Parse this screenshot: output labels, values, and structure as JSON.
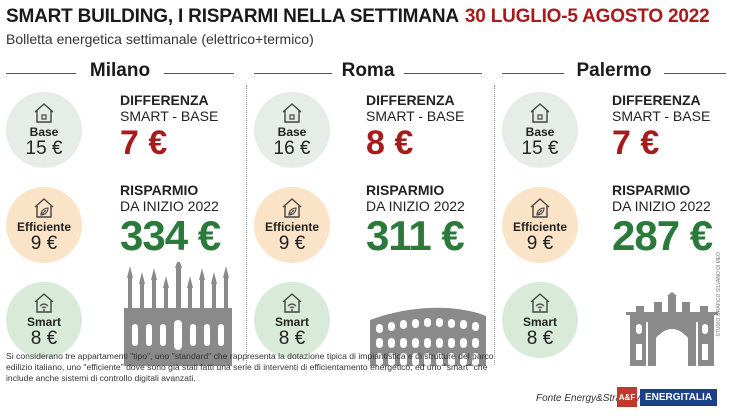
{
  "header": {
    "title": "SMART BUILDING, I RISPARMI NELLA SETTIMANA",
    "date_range": "30 LUGLIO-5 AGOSTO 2022",
    "subtitle": "Bolletta energetica settimanale (elettrico+termico)"
  },
  "labels": {
    "base": "Base",
    "efficient": "Efficiente",
    "smart": "Smart",
    "diff_line1": "DIFFERENZA",
    "diff_line2": "SMART - BASE",
    "save_line1": "RISPARMIO",
    "save_line2": "DA INIZIO 2022"
  },
  "cities": [
    {
      "name": "Milano",
      "base": "15 €",
      "efficient": "9 €",
      "smart": "8 €",
      "difference": "7 €",
      "savings": "334 €"
    },
    {
      "name": "Roma",
      "base": "16 €",
      "efficient": "9 €",
      "smart": "8 €",
      "difference": "8 €",
      "savings": "311 €"
    },
    {
      "name": "Palermo",
      "base": "15 €",
      "efficient": "9 €",
      "smart": "8 €",
      "difference": "7 €",
      "savings": "287 €"
    }
  ],
  "colors": {
    "accent_red": "#a61c1c",
    "savings_green": "#2b7a3b",
    "base_circle": "#e6ece6",
    "efficient_circle": "#fbe3c8",
    "smart_circle": "#d8ebd8"
  },
  "footnote": "Si considerano tre appartamenti \"tipo\", uno \"standard\" che rappresenta la dotazione tipica di impiantistica e di strutture del parco edilizio italiano, uno \"efficiente\" dove sono già stati fatti una serie di interventi di efficientamento energetico, ed uno \"smart\" che include anche sistemi di controllo digitali avanzati.",
  "source": "Fonte Energy&Strategy",
  "logo": {
    "mark": "A&F",
    "text": "ENERGITALIA"
  },
  "credit": "STUDIO GRAFICO SILVANO DI MEO"
}
